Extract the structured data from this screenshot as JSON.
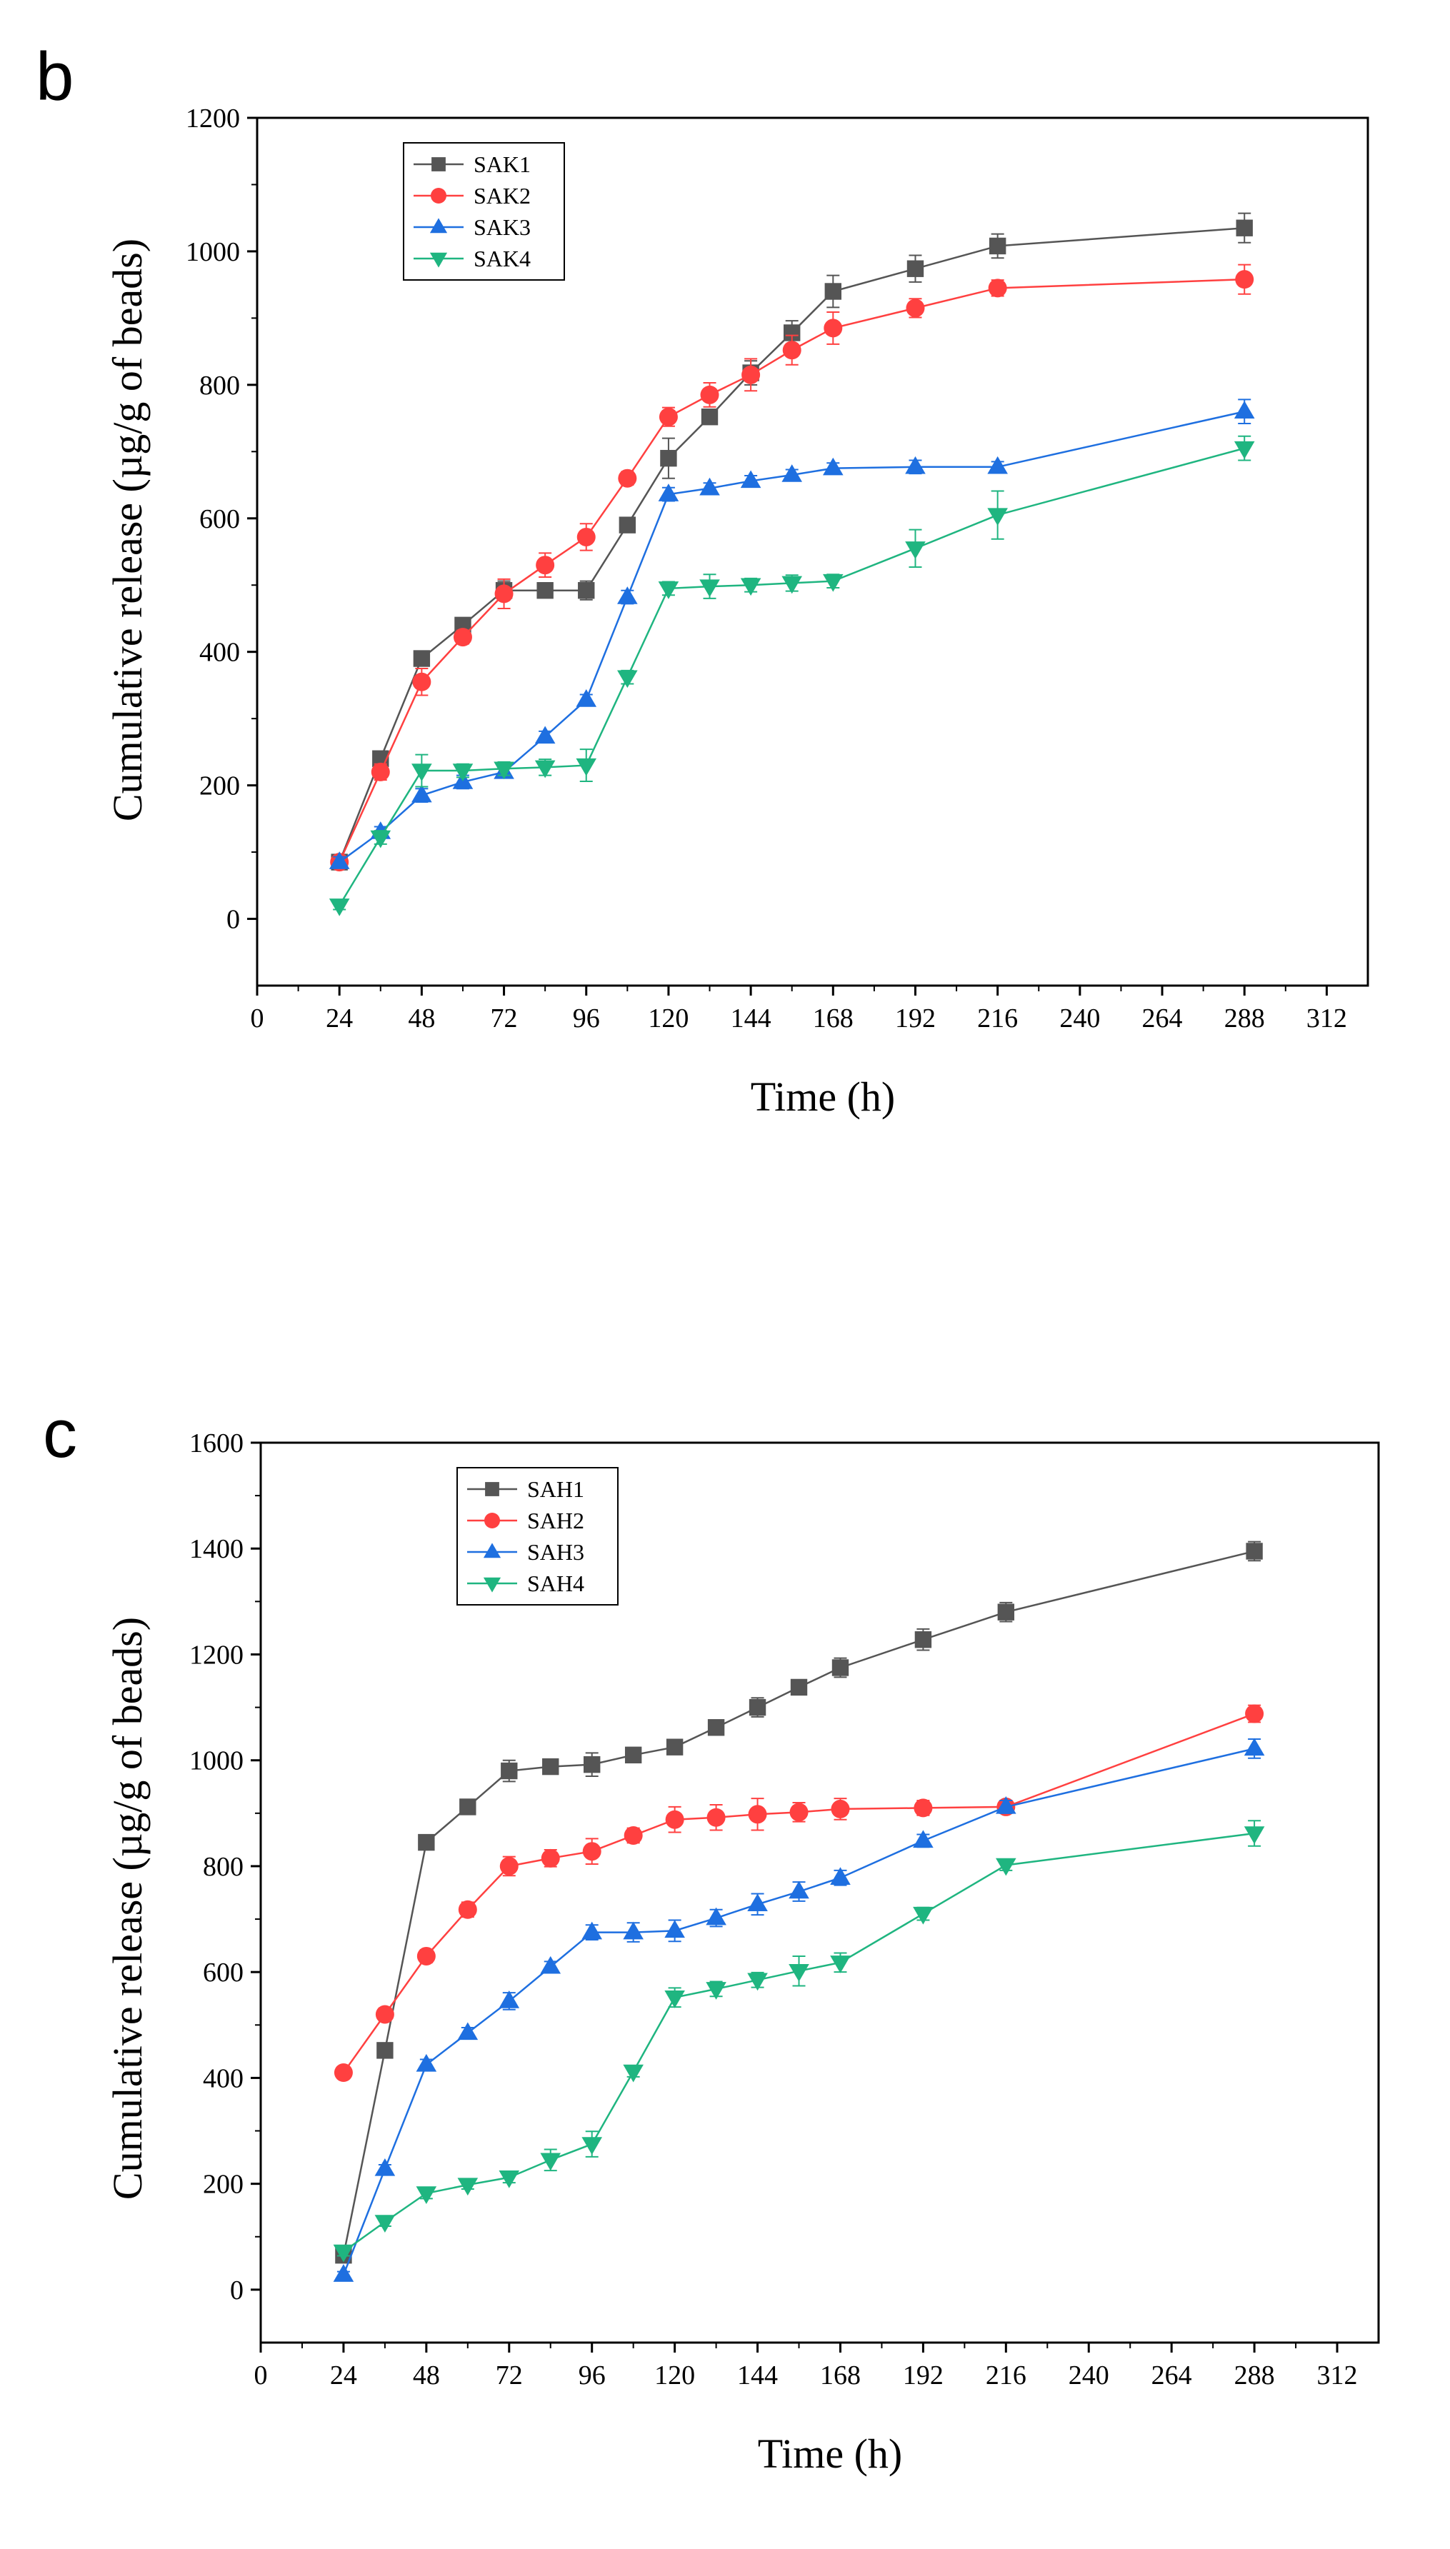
{
  "chart_data": [
    {
      "type": "line",
      "panel_label": "b",
      "xlabel": "Time (h)",
      "ylabel": "Cumulative release (µg/g of beads)",
      "xlim": [
        0,
        324
      ],
      "ylim": [
        -100,
        1200
      ],
      "xticks": [
        0,
        24,
        48,
        72,
        96,
        120,
        144,
        168,
        192,
        216,
        240,
        264,
        288,
        312
      ],
      "yticks": [
        0,
        200,
        400,
        600,
        800,
        1000,
        1200
      ],
      "legend_position": "top-left",
      "series": [
        {
          "name": "SAK1",
          "color": "#555555",
          "marker": "square",
          "x": [
            24,
            36,
            48,
            60,
            72,
            84,
            96,
            108,
            120,
            132,
            144,
            156,
            168,
            192,
            216,
            288
          ],
          "y": [
            85,
            240,
            390,
            440,
            492,
            492,
            492,
            590,
            690,
            752,
            818,
            878,
            940,
            974,
            1008,
            1035
          ],
          "err": [
            8,
            10,
            10,
            8,
            14,
            8,
            14,
            10,
            30,
            10,
            18,
            18,
            24,
            20,
            18,
            22
          ]
        },
        {
          "name": "SAK2",
          "color": "#ff4040",
          "marker": "circle",
          "x": [
            24,
            36,
            48,
            60,
            72,
            84,
            96,
            108,
            120,
            132,
            144,
            156,
            168,
            192,
            216,
            288
          ],
          "y": [
            85,
            220,
            355,
            422,
            487,
            530,
            572,
            660,
            752,
            785,
            815,
            852,
            885,
            915,
            945,
            958
          ],
          "err": [
            8,
            12,
            20,
            10,
            22,
            18,
            20,
            10,
            14,
            18,
            24,
            22,
            24,
            14,
            12,
            22
          ]
        },
        {
          "name": "SAK3",
          "color": "#1e6fe0",
          "marker": "triangle-up",
          "x": [
            24,
            36,
            48,
            60,
            72,
            84,
            96,
            108,
            120,
            132,
            144,
            156,
            168,
            192,
            216,
            288
          ],
          "y": [
            85,
            130,
            185,
            205,
            220,
            273,
            328,
            482,
            636,
            645,
            656,
            665,
            675,
            677,
            677,
            760
          ],
          "err": [
            8,
            8,
            10,
            10,
            8,
            8,
            8,
            10,
            10,
            8,
            8,
            8,
            8,
            10,
            8,
            18
          ]
        },
        {
          "name": "SAK4",
          "color": "#1fb580",
          "marker": "triangle-down",
          "x": [
            24,
            36,
            48,
            60,
            72,
            84,
            96,
            108,
            120,
            132,
            144,
            156,
            168,
            192,
            216,
            288
          ],
          "y": [
            20,
            122,
            222,
            222,
            225,
            227,
            230,
            362,
            495,
            498,
            500,
            503,
            506,
            555,
            605,
            705
          ],
          "err": [
            6,
            10,
            24,
            10,
            10,
            12,
            24,
            10,
            10,
            18,
            10,
            12,
            10,
            28,
            36,
            18
          ]
        }
      ]
    },
    {
      "type": "line",
      "panel_label": "c",
      "xlabel": "Time (h)",
      "ylabel": "Cumulative release (µg/g of beads)",
      "xlim": [
        0,
        324
      ],
      "ylim": [
        -100,
        1600
      ],
      "xticks": [
        0,
        24,
        48,
        72,
        96,
        120,
        144,
        168,
        192,
        216,
        240,
        264,
        288,
        312
      ],
      "yticks": [
        0,
        200,
        400,
        600,
        800,
        1000,
        1200,
        1400,
        1600
      ],
      "legend_position": "top-left",
      "series": [
        {
          "name": "SAH1",
          "color": "#555555",
          "marker": "square",
          "x": [
            24,
            36,
            48,
            60,
            72,
            84,
            96,
            108,
            120,
            132,
            144,
            156,
            168,
            192,
            216,
            288
          ],
          "y": [
            65,
            452,
            845,
            912,
            980,
            988,
            992,
            1010,
            1025,
            1062,
            1100,
            1138,
            1175,
            1228,
            1280,
            1395
          ],
          "err": [
            8,
            10,
            10,
            12,
            20,
            12,
            22,
            14,
            12,
            14,
            18,
            14,
            18,
            20,
            18,
            18
          ]
        },
        {
          "name": "SAH2",
          "color": "#ff4040",
          "marker": "circle",
          "x": [
            24,
            36,
            48,
            60,
            72,
            84,
            96,
            108,
            120,
            132,
            144,
            156,
            168,
            192,
            216,
            288
          ],
          "y": [
            410,
            520,
            630,
            718,
            800,
            815,
            828,
            858,
            888,
            892,
            898,
            902,
            908,
            910,
            912,
            1088
          ],
          "err": [
            10,
            12,
            12,
            14,
            18,
            16,
            24,
            14,
            24,
            24,
            30,
            18,
            20,
            14,
            12,
            16
          ]
        },
        {
          "name": "SAH3",
          "color": "#1e6fe0",
          "marker": "triangle-up",
          "x": [
            24,
            36,
            48,
            60,
            72,
            84,
            96,
            108,
            120,
            132,
            144,
            156,
            168,
            192,
            216,
            288
          ],
          "y": [
            28,
            228,
            425,
            485,
            545,
            610,
            675,
            675,
            678,
            702,
            728,
            752,
            778,
            848,
            912,
            1022
          ],
          "err": [
            6,
            8,
            10,
            10,
            16,
            10,
            14,
            18,
            20,
            16,
            20,
            18,
            14,
            12,
            12,
            18
          ]
        },
        {
          "name": "SAH4",
          "color": "#1fb580",
          "marker": "triangle-down",
          "x": [
            24,
            36,
            48,
            60,
            72,
            84,
            96,
            108,
            120,
            132,
            144,
            156,
            168,
            192,
            216,
            288
          ],
          "y": [
            72,
            128,
            182,
            198,
            212,
            245,
            275,
            412,
            552,
            568,
            585,
            602,
            618,
            710,
            802,
            862
          ],
          "err": [
            8,
            8,
            10,
            8,
            10,
            20,
            24,
            10,
            18,
            14,
            14,
            28,
            18,
            12,
            10,
            24
          ]
        }
      ]
    }
  ]
}
